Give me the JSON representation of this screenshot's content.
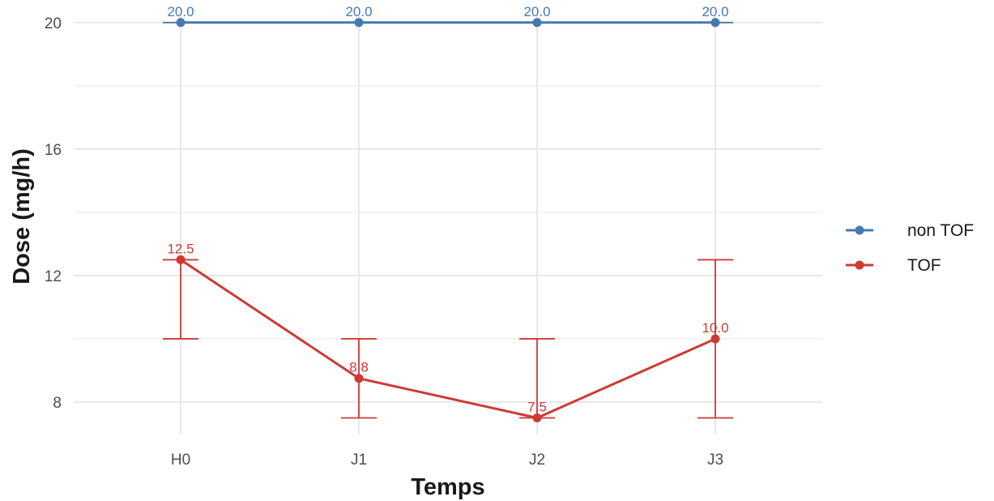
{
  "chart_data": {
    "type": "line",
    "xlabel": "Temps",
    "ylabel": "Dose (mg/h)",
    "categories": [
      "H0",
      "J1",
      "J2",
      "J3"
    ],
    "ylim": [
      7,
      20.2
    ],
    "yticks": [
      8,
      12,
      16,
      20
    ],
    "grid": true,
    "legend_position": "right",
    "series": [
      {
        "name": "non TOF",
        "color": "#4479b4",
        "values": [
          20.0,
          20.0,
          20.0,
          20.0
        ],
        "labels": [
          "20.0",
          "20.0",
          "20.0",
          "20.0"
        ],
        "error_low": [
          20.0,
          20.0,
          20.0,
          20.0
        ],
        "error_high": [
          20.0,
          20.0,
          20.0,
          20.0
        ]
      },
      {
        "name": "TOF",
        "color": "#cd3a34",
        "values": [
          12.5,
          8.75,
          7.5,
          10.0
        ],
        "labels": [
          "12.5",
          "8.8",
          "7.5",
          "10.0"
        ],
        "error_low": [
          10.0,
          7.5,
          7.5,
          7.5
        ],
        "error_high": [
          12.5,
          10.0,
          10.0,
          12.5
        ]
      }
    ]
  }
}
